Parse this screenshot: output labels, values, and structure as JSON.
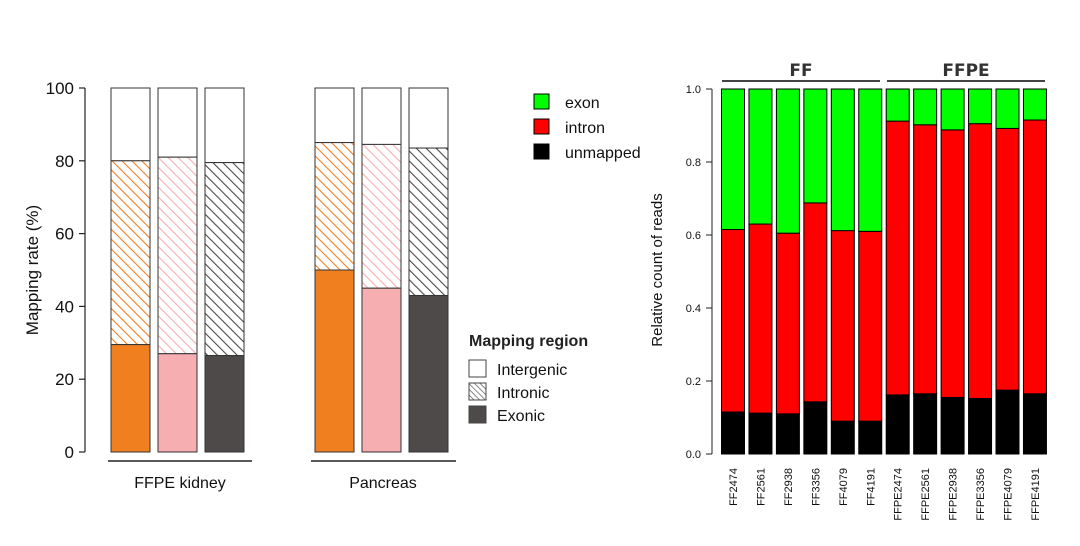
{
  "chart_data": [
    {
      "type": "bar",
      "stacked": true,
      "ylabel": "Mapping rate (%)",
      "ylim": [
        0,
        100
      ],
      "yticks": [
        0,
        20,
        40,
        60,
        80,
        100
      ],
      "groups": [
        {
          "label": "FFPE kidney"
        },
        {
          "label": "Pancreas"
        }
      ],
      "bars": [
        {
          "group": 0,
          "color": "#f07f20",
          "exonic": 29.5,
          "intronic": 50.5,
          "intergenic": 20.0
        },
        {
          "group": 0,
          "color": "#f6aeb0",
          "exonic": 27.0,
          "intronic": 54.0,
          "intergenic": 19.0
        },
        {
          "group": 0,
          "color": "#4e4a49",
          "exonic": 26.5,
          "intronic": 53.0,
          "intergenic": 20.5
        },
        {
          "group": 1,
          "color": "#f07f20",
          "exonic": 50.0,
          "intronic": 35.0,
          "intergenic": 15.0
        },
        {
          "group": 1,
          "color": "#f6aeb0",
          "exonic": 45.0,
          "intronic": 39.5,
          "intergenic": 15.5
        },
        {
          "group": 1,
          "color": "#4e4a49",
          "exonic": 43.0,
          "intronic": 40.5,
          "intergenic": 16.5
        }
      ],
      "legend": {
        "title": "Mapping region",
        "position": "right",
        "items": [
          "Intergenic",
          "Intronic",
          "Exonic"
        ]
      }
    },
    {
      "type": "bar",
      "stacked": true,
      "ylabel": "Relative count of reads",
      "ylim": [
        0,
        1
      ],
      "yticks": [
        "0.0",
        "0.2",
        "0.4",
        "0.6",
        "0.8",
        "1.0"
      ],
      "categories": [
        "FF2474",
        "FF2561",
        "FF2938",
        "FF3356",
        "FF4079",
        "FF4191",
        "FFPE2474",
        "FFPE2561",
        "FFPE2938",
        "FFPE3356",
        "FFPE4079",
        "FFPE4191"
      ],
      "series": [
        {
          "name": "unmapped",
          "color": "#000000",
          "values": [
            0.115,
            0.112,
            0.11,
            0.143,
            0.09,
            0.09,
            0.162,
            0.165,
            0.155,
            0.152,
            0.175,
            0.165
          ]
        },
        {
          "name": "intron",
          "color": "#ff0000",
          "values": [
            0.5,
            0.518,
            0.495,
            0.545,
            0.522,
            0.52,
            0.75,
            0.737,
            0.733,
            0.753,
            0.717,
            0.75
          ]
        },
        {
          "name": "exon",
          "color": "#00ff00",
          "values": [
            0.385,
            0.37,
            0.395,
            0.312,
            0.388,
            0.39,
            0.088,
            0.098,
            0.112,
            0.095,
            0.108,
            0.085
          ]
        }
      ],
      "group_labels": [
        {
          "label": "FF"
        },
        {
          "label": "FFPE"
        }
      ],
      "legend": {
        "position": "top-left",
        "items": [
          "exon",
          "intron",
          "unmapped"
        ]
      }
    }
  ]
}
